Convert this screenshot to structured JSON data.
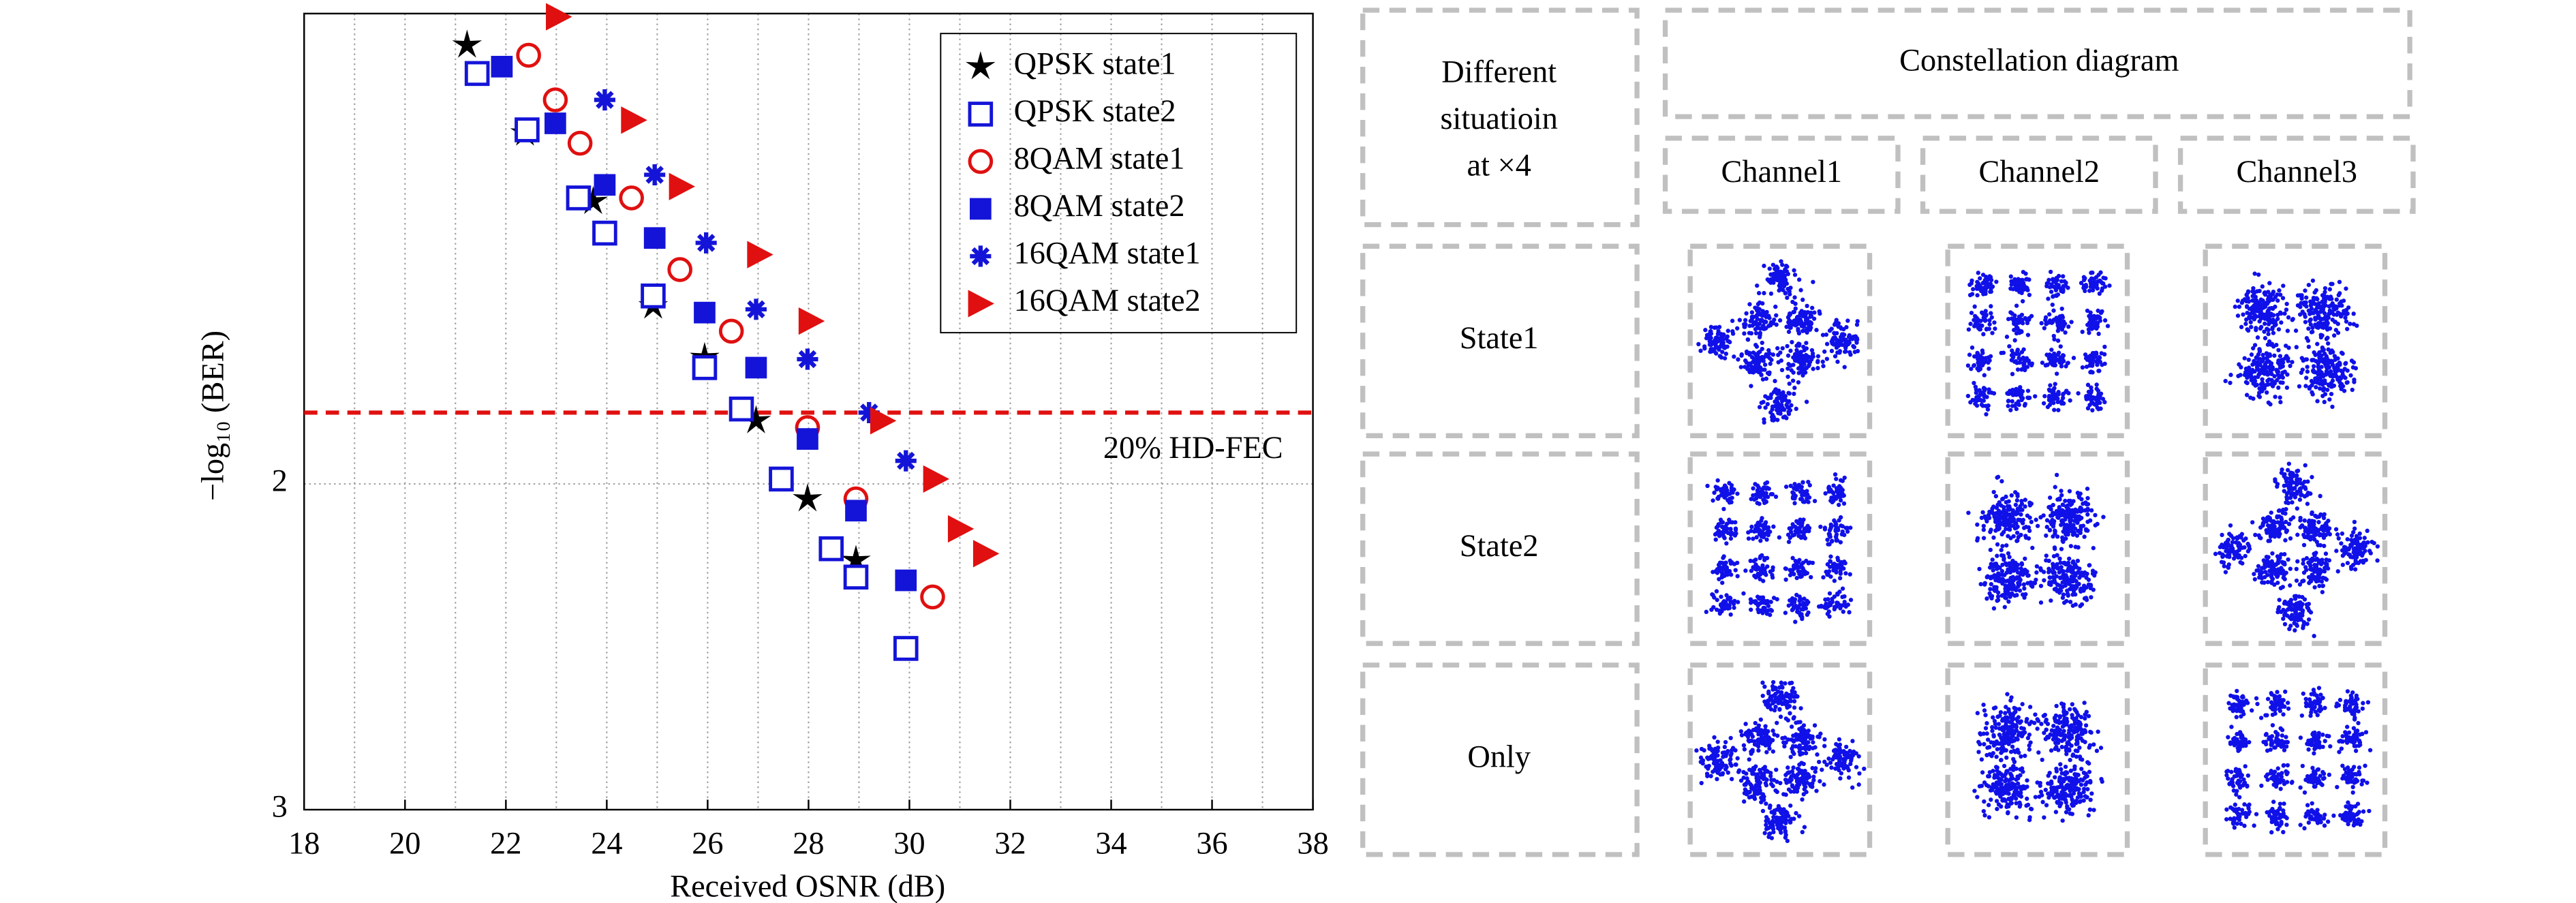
{
  "chart_data": {
    "type": "scatter",
    "xlabel": "Received OSNR (dB)",
    "ylabel": "−log₁₀ (BER)",
    "xlim": [
      18,
      38
    ],
    "xticks": [
      18,
      20,
      22,
      24,
      26,
      28,
      30,
      32,
      34,
      36,
      38
    ],
    "xgrid_minor": [
      19,
      21,
      23,
      25,
      27,
      29,
      31,
      33,
      35,
      37
    ],
    "ylim": [
      3,
      0.556
    ],
    "yticks": [
      2,
      3
    ],
    "grid": true,
    "legend": "upper right",
    "threshold": {
      "value": 1.781,
      "label": "20% HD-FEC",
      "color": "#e01010"
    },
    "series": [
      {
        "name": "QPSK state1",
        "color": "#000000",
        "marker": "star",
        "x": [
          21.23,
          22.38,
          23.73,
          24.92,
          25.94,
          26.96,
          27.98,
          28.94
        ],
        "values": [
          0.653,
          0.923,
          1.133,
          1.454,
          1.612,
          1.806,
          2.046,
          2.235
        ]
      },
      {
        "name": "QPSK state2",
        "color": "#1414d8",
        "marker": "open-square",
        "x": [
          21.43,
          22.42,
          23.44,
          23.96,
          24.92,
          25.94,
          26.67,
          27.46,
          28.45,
          28.94,
          29.93
        ],
        "values": [
          0.74,
          0.913,
          1.122,
          1.23,
          1.423,
          1.643,
          1.77,
          1.985,
          2.199,
          2.286,
          2.505
        ]
      },
      {
        "name": "8QAM state1",
        "color": "#e01010",
        "marker": "open-circle",
        "x": [
          22.45,
          22.98,
          23.47,
          24.49,
          25.45,
          26.47,
          27.98,
          28.94,
          30.46
        ],
        "values": [
          0.684,
          0.821,
          0.954,
          1.122,
          1.342,
          1.531,
          1.827,
          2.046,
          2.347
        ]
      },
      {
        "name": "8QAM state2",
        "color": "#1414d8",
        "marker": "square",
        "x": [
          21.92,
          22.98,
          23.96,
          24.95,
          25.94,
          26.96,
          27.98,
          28.94,
          29.93
        ],
        "values": [
          0.719,
          0.893,
          1.082,
          1.245,
          1.474,
          1.643,
          1.862,
          2.082,
          2.296
        ]
      },
      {
        "name": "16QAM state1",
        "color": "#1414d8",
        "marker": "asterisk",
        "x": [
          23.96,
          24.95,
          25.97,
          26.96,
          27.98,
          29.2,
          29.93
        ],
        "values": [
          0.821,
          1.051,
          1.26,
          1.464,
          1.617,
          1.781,
          1.929
        ]
      },
      {
        "name": "16QAM state2",
        "color": "#e01010",
        "marker": "triangle-right",
        "x": [
          23.04,
          24.53,
          25.48,
          27.03,
          28.05,
          29.47,
          30.52,
          31.01,
          31.51
        ],
        "values": [
          0.566,
          0.883,
          1.087,
          1.296,
          1.5,
          1.806,
          1.985,
          2.138,
          2.214
        ]
      }
    ]
  },
  "table": {
    "corner_lines": [
      "Different",
      "situatioin",
      "at ×4"
    ],
    "header": "Constellation diagram",
    "channels": [
      "Channel1",
      "Channel2",
      "Channel3"
    ],
    "rows": [
      "State1",
      "State2",
      "Only"
    ]
  }
}
